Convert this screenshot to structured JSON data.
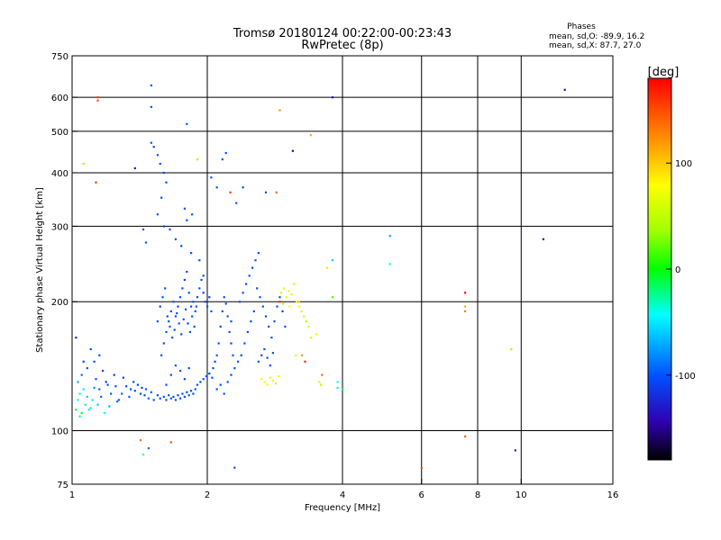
{
  "chart_data": {
    "type": "scatter",
    "title": "Tromsø 20180124 00:22:00-00:23:43",
    "subtitle": "RwPretec (8p)",
    "xlabel": "Frequency [MHz]",
    "ylabel": "Stationary phase Virtual Height [km]",
    "x_scale": "log",
    "y_scale": "log",
    "xlim": [
      1,
      16
    ],
    "ylim": [
      75,
      750
    ],
    "x_ticks": [
      1,
      2,
      4,
      6,
      8,
      10,
      16
    ],
    "y_ticks": [
      75,
      100,
      200,
      300,
      400,
      500,
      600,
      750
    ],
    "x_grid": [
      2,
      4,
      6,
      8,
      10
    ],
    "y_grid": [
      100,
      200,
      300,
      400,
      500,
      600
    ],
    "grid": true,
    "stats": {
      "heading": "Phases",
      "line_o": "mean, sd,O: -89.9, 16.2",
      "line_x": "mean, sd,X:  87.7, 27.0"
    },
    "colorbar": {
      "label": "[deg]",
      "range": [
        -180,
        180
      ],
      "ticks": [
        100,
        0,
        -100
      ]
    },
    "note": "Scatter points are listed as [frequency MHz, virtual height km, phase deg].",
    "points": [
      [
        1.02,
        112,
        -20
      ],
      [
        1.03,
        118,
        -40
      ],
      [
        1.04,
        122,
        -30
      ],
      [
        1.05,
        110,
        -10
      ],
      [
        1.06,
        125,
        -50
      ],
      [
        1.07,
        115,
        -25
      ],
      [
        1.03,
        130,
        -70
      ],
      [
        1.05,
        135,
        -90
      ],
      [
        1.08,
        120,
        -60
      ],
      [
        1.1,
        113,
        -30
      ],
      [
        1.11,
        118,
        -45
      ],
      [
        1.12,
        126,
        -80
      ],
      [
        1.13,
        132,
        -100
      ],
      [
        1.15,
        125,
        -95
      ],
      [
        1.16,
        120,
        -90
      ],
      [
        1.17,
        138,
        -110
      ],
      [
        1.19,
        130,
        -105
      ],
      [
        1.2,
        128,
        -100
      ],
      [
        1.22,
        122,
        -100
      ],
      [
        1.24,
        135,
        -110
      ],
      [
        1.25,
        127,
        -105
      ],
      [
        1.27,
        118,
        -100
      ],
      [
        1.29,
        122,
        -95
      ],
      [
        1.3,
        133,
        -110
      ],
      [
        1.32,
        127,
        -100
      ],
      [
        1.34,
        120,
        -95
      ],
      [
        1.35,
        125,
        -100
      ],
      [
        1.37,
        130,
        -105
      ],
      [
        1.38,
        124,
        -100
      ],
      [
        1.4,
        128,
        -110
      ],
      [
        1.42,
        122,
        -100
      ],
      [
        1.43,
        126,
        -105
      ],
      [
        1.45,
        121,
        -100
      ],
      [
        1.46,
        125,
        -100
      ],
      [
        1.48,
        119,
        -95
      ],
      [
        1.5,
        123,
        -100
      ],
      [
        1.06,
        145,
        -110
      ],
      [
        1.1,
        155,
        -105
      ],
      [
        1.15,
        150,
        -100
      ],
      [
        1.02,
        165,
        -120
      ],
      [
        1.08,
        140,
        -100
      ],
      [
        1.12,
        145,
        -105
      ],
      [
        1.04,
        108,
        -30
      ],
      [
        1.09,
        112,
        -50
      ],
      [
        1.14,
        115,
        -60
      ],
      [
        1.18,
        110,
        -40
      ],
      [
        1.21,
        114,
        -70
      ],
      [
        1.26,
        117,
        -90
      ],
      [
        1.52,
        118,
        -100
      ],
      [
        1.55,
        121,
        -100
      ],
      [
        1.57,
        119,
        -105
      ],
      [
        1.6,
        120,
        -100
      ],
      [
        1.62,
        118,
        -100
      ],
      [
        1.64,
        121,
        -105
      ],
      [
        1.66,
        119,
        -100
      ],
      [
        1.68,
        120,
        -100
      ],
      [
        1.7,
        118,
        -100
      ],
      [
        1.72,
        121,
        -105
      ],
      [
        1.74,
        119,
        -100
      ],
      [
        1.76,
        122,
        -100
      ],
      [
        1.78,
        120,
        -100
      ],
      [
        1.8,
        123,
        -105
      ],
      [
        1.82,
        121,
        -100
      ],
      [
        1.84,
        124,
        -100
      ],
      [
        1.86,
        122,
        -105
      ],
      [
        1.88,
        125,
        -100
      ],
      [
        1.9,
        128,
        -100
      ],
      [
        1.93,
        130,
        -105
      ],
      [
        1.96,
        132,
        -100
      ],
      [
        1.99,
        134,
        -100
      ],
      [
        2.02,
        136,
        -105
      ],
      [
        2.05,
        133,
        -100
      ],
      [
        1.62,
        128,
        -100
      ],
      [
        1.66,
        135,
        -105
      ],
      [
        1.7,
        142,
        -100
      ],
      [
        1.74,
        138,
        -100
      ],
      [
        1.78,
        132,
        -105
      ],
      [
        1.82,
        140,
        -100
      ],
      [
        1.58,
        150,
        -100
      ],
      [
        1.6,
        160,
        -105
      ],
      [
        1.62,
        170,
        -100
      ],
      [
        1.64,
        180,
        -100
      ],
      [
        1.66,
        190,
        -105
      ],
      [
        1.68,
        200,
        -100
      ],
      [
        1.7,
        185,
        -100
      ],
      [
        1.72,
        195,
        -105
      ],
      [
        1.74,
        205,
        -100
      ],
      [
        1.76,
        215,
        -100
      ],
      [
        1.78,
        225,
        -105
      ],
      [
        1.8,
        235,
        -100
      ],
      [
        1.82,
        210,
        -100
      ],
      [
        1.84,
        195,
        -105
      ],
      [
        1.86,
        200,
        -100
      ],
      [
        1.88,
        190,
        -100
      ],
      [
        1.9,
        205,
        -105
      ],
      [
        1.92,
        215,
        -100
      ],
      [
        1.94,
        225,
        -100
      ],
      [
        1.96,
        210,
        -105
      ],
      [
        1.98,
        200,
        -100
      ],
      [
        2.0,
        195,
        -100
      ],
      [
        2.02,
        205,
        -105
      ],
      [
        2.04,
        190,
        -100
      ],
      [
        1.55,
        180,
        -100
      ],
      [
        1.57,
        195,
        -105
      ],
      [
        1.59,
        205,
        -100
      ],
      [
        1.61,
        215,
        -100
      ],
      [
        1.63,
        185,
        -105
      ],
      [
        1.65,
        175,
        -100
      ],
      [
        1.67,
        165,
        -100
      ],
      [
        1.69,
        172,
        -105
      ],
      [
        1.71,
        188,
        -100
      ],
      [
        1.73,
        178,
        -100
      ],
      [
        1.75,
        168,
        -105
      ],
      [
        1.77,
        182,
        -100
      ],
      [
        1.79,
        192,
        -100
      ],
      [
        1.81,
        178,
        -105
      ],
      [
        1.83,
        170,
        -100
      ],
      [
        1.85,
        185,
        -100
      ],
      [
        1.87,
        175,
        -105
      ],
      [
        1.89,
        195,
        -100
      ],
      [
        2.06,
        140,
        -100
      ],
      [
        2.08,
        145,
        -105
      ],
      [
        2.1,
        150,
        -100
      ],
      [
        2.12,
        160,
        -100
      ],
      [
        2.14,
        175,
        -105
      ],
      [
        2.16,
        190,
        -100
      ],
      [
        2.18,
        205,
        -100
      ],
      [
        2.2,
        198,
        -105
      ],
      [
        2.22,
        185,
        -100
      ],
      [
        2.24,
        170,
        -100
      ],
      [
        2.26,
        160,
        -105
      ],
      [
        2.28,
        150,
        -100
      ],
      [
        2.1,
        125,
        -100
      ],
      [
        2.14,
        128,
        -105
      ],
      [
        2.18,
        122,
        -100
      ],
      [
        2.22,
        130,
        -100
      ],
      [
        2.26,
        135,
        -105
      ],
      [
        2.3,
        140,
        -100
      ],
      [
        2.34,
        145,
        -100
      ],
      [
        2.38,
        150,
        -105
      ],
      [
        2.42,
        160,
        -100
      ],
      [
        2.46,
        170,
        -100
      ],
      [
        2.5,
        180,
        -105
      ],
      [
        2.54,
        190,
        -100
      ],
      [
        2.36,
        200,
        -100
      ],
      [
        2.4,
        210,
        -105
      ],
      [
        2.44,
        220,
        -100
      ],
      [
        2.48,
        230,
        -100
      ],
      [
        2.52,
        240,
        -105
      ],
      [
        2.56,
        250,
        -100
      ],
      [
        2.6,
        260,
        -100
      ],
      [
        2.58,
        215,
        -105
      ],
      [
        2.62,
        205,
        -100
      ],
      [
        2.66,
        195,
        -100
      ],
      [
        2.7,
        185,
        -105
      ],
      [
        2.74,
        175,
        -100
      ],
      [
        2.78,
        165,
        -100
      ],
      [
        2.82,
        180,
        -105
      ],
      [
        2.86,
        195,
        -100
      ],
      [
        2.9,
        205,
        -100
      ],
      [
        2.94,
        190,
        -105
      ],
      [
        2.98,
        175,
        -100
      ],
      [
        2.6,
        145,
        -100
      ],
      [
        2.64,
        150,
        -105
      ],
      [
        2.68,
        155,
        -100
      ],
      [
        2.72,
        148,
        -100
      ],
      [
        2.76,
        142,
        -105
      ],
      [
        2.8,
        152,
        -100
      ],
      [
        2.64,
        132,
        70
      ],
      [
        2.68,
        130,
        75
      ],
      [
        2.72,
        128,
        80
      ],
      [
        2.76,
        133,
        70
      ],
      [
        2.8,
        131,
        85
      ],
      [
        2.84,
        129,
        90
      ],
      [
        2.88,
        134,
        70
      ],
      [
        2.92,
        210,
        60
      ],
      [
        2.96,
        215,
        70
      ],
      [
        3.0,
        205,
        65
      ],
      [
        3.04,
        212,
        75
      ],
      [
        3.08,
        208,
        60
      ],
      [
        3.12,
        220,
        55
      ],
      [
        3.16,
        200,
        65
      ],
      [
        3.2,
        195,
        70
      ],
      [
        3.24,
        190,
        60
      ],
      [
        3.28,
        185,
        55
      ],
      [
        3.32,
        180,
        50
      ],
      [
        3.36,
        175,
        60
      ],
      [
        2.9,
        200,
        170
      ],
      [
        3.3,
        145,
        170
      ],
      [
        3.4,
        165,
        60
      ],
      [
        3.5,
        168,
        70
      ],
      [
        3.15,
        150,
        60
      ],
      [
        1.5,
        470,
        -100
      ],
      [
        1.52,
        460,
        -105
      ],
      [
        1.55,
        440,
        -100
      ],
      [
        1.57,
        420,
        -100
      ],
      [
        1.6,
        400,
        -105
      ],
      [
        1.62,
        380,
        -100
      ],
      [
        1.58,
        350,
        -100
      ],
      [
        1.55,
        320,
        -100
      ],
      [
        1.6,
        300,
        -105
      ],
      [
        1.65,
        295,
        -100
      ],
      [
        1.7,
        280,
        -100
      ],
      [
        1.75,
        270,
        -105
      ],
      [
        1.8,
        310,
        -100
      ],
      [
        1.85,
        320,
        -100
      ],
      [
        1.5,
        640,
        -100
      ],
      [
        1.5,
        570,
        -100
      ],
      [
        1.14,
        600,
        160
      ],
      [
        1.14,
        590,
        150
      ],
      [
        1.06,
        420,
        40
      ],
      [
        1.13,
        380,
        160
      ],
      [
        1.38,
        410,
        -130
      ],
      [
        1.44,
        295,
        -100
      ],
      [
        1.46,
        275,
        -100
      ],
      [
        1.9,
        430,
        40
      ],
      [
        2.04,
        390,
        -100
      ],
      [
        2.1,
        370,
        -100
      ],
      [
        2.16,
        430,
        -100
      ],
      [
        2.2,
        445,
        -100
      ],
      [
        2.25,
        360,
        160
      ],
      [
        2.32,
        340,
        -100
      ],
      [
        2.4,
        370,
        -100
      ],
      [
        2.7,
        360,
        -100
      ],
      [
        2.85,
        360,
        140
      ],
      [
        2.9,
        560,
        120
      ],
      [
        3.1,
        450,
        -140
      ],
      [
        3.4,
        490,
        110
      ],
      [
        3.8,
        600,
        -140
      ],
      [
        5.1,
        285,
        -70
      ],
      [
        5.1,
        245,
        -40
      ],
      [
        3.7,
        240,
        90
      ],
      [
        3.8,
        250,
        -60
      ],
      [
        3.8,
        205,
        20
      ],
      [
        3.6,
        135,
        140
      ],
      [
        3.9,
        130,
        -40
      ],
      [
        3.9,
        126,
        -50
      ],
      [
        4.0,
        125,
        -10
      ],
      [
        7.5,
        210,
        180
      ],
      [
        7.5,
        195,
        110
      ],
      [
        7.5,
        190,
        130
      ],
      [
        7.5,
        97,
        140
      ],
      [
        9.5,
        155,
        40
      ],
      [
        9.7,
        90,
        -130
      ],
      [
        11.2,
        280,
        -140
      ],
      [
        12.5,
        625,
        -140
      ],
      [
        6.0,
        82,
        150
      ],
      [
        1.42,
        95,
        140
      ],
      [
        1.44,
        88,
        -40
      ],
      [
        1.48,
        91,
        -90
      ],
      [
        1.66,
        94,
        150
      ],
      [
        2.3,
        82,
        -100
      ],
      [
        1.8,
        520,
        -100
      ],
      [
        1.78,
        330,
        -100
      ],
      [
        1.84,
        260,
        -100
      ],
      [
        1.92,
        250,
        -100
      ],
      [
        1.96,
        230,
        -100
      ],
      [
        2.26,
        180,
        -100
      ],
      [
        3.2,
        200,
        100
      ],
      [
        3.05,
        195,
        80
      ],
      [
        2.95,
        198,
        40
      ],
      [
        3.25,
        150,
        120
      ],
      [
        3.55,
        130,
        60
      ],
      [
        3.58,
        128,
        40
      ]
    ]
  }
}
